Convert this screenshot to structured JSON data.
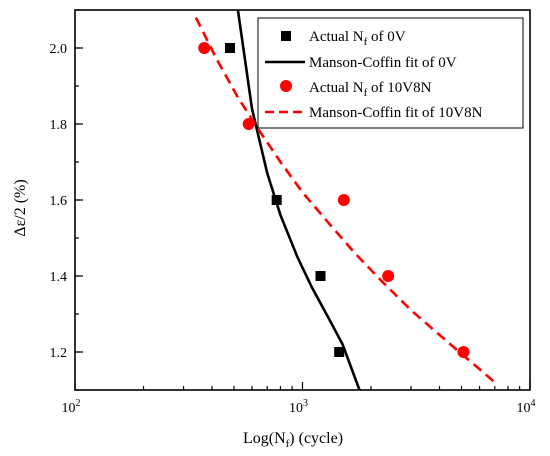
{
  "chart_data": {
    "type": "scatter",
    "title": "",
    "xlabel": "Log(N",
    "xlabel_sub": "f",
    "xlabel_suffix": ") (cycle)",
    "ylabel": "Δε/2 (%)",
    "xscale": "log",
    "xlim": [
      100,
      10000
    ],
    "ylim": [
      1.1,
      2.1
    ],
    "x_ticks": [
      {
        "value": 100,
        "base": "10",
        "exp": "2"
      },
      {
        "value": 1000,
        "base": "10",
        "exp": "3"
      },
      {
        "value": 10000,
        "base": "10",
        "exp": "4"
      }
    ],
    "y_ticks": [
      "1.2",
      "1.4",
      "1.6",
      "1.8",
      "2.0"
    ],
    "grid": false,
    "legend_position": "top-right",
    "series": [
      {
        "name": "Actual N",
        "name_sub": "f",
        "name_suffix": " of 0V",
        "kind": "points",
        "marker": "square",
        "color": "#000000",
        "x": [
          480,
          770,
          1200,
          1450
        ],
        "y": [
          2.0,
          1.6,
          1.4,
          1.2
        ]
      },
      {
        "name": "Manson-Coffin fit of 0V",
        "kind": "line",
        "style": "solid",
        "color": "#000000",
        "x": [
          520,
          600,
          700,
          800,
          950,
          1100,
          1300,
          1500,
          1780
        ],
        "y": [
          2.1,
          1.84,
          1.67,
          1.56,
          1.45,
          1.37,
          1.29,
          1.22,
          1.1
        ]
      },
      {
        "name": "Actual N",
        "name_sub": "f",
        "name_suffix": " of 10V8N",
        "kind": "points",
        "marker": "circle",
        "color": "#ff0000",
        "x": [
          370,
          580,
          1520,
          2380,
          5100
        ],
        "y": [
          2.0,
          1.8,
          1.6,
          1.4,
          1.2
        ]
      },
      {
        "name": "Manson-Coffin fit of 10V8N",
        "kind": "line",
        "style": "dashed",
        "color": "#ff0000",
        "x": [
          340,
          420,
          520,
          650,
          800,
          1000,
          1300,
          1700,
          2200,
          3000,
          4000,
          5000,
          6000,
          7000
        ],
        "y": [
          2.08,
          1.97,
          1.87,
          1.78,
          1.7,
          1.62,
          1.54,
          1.46,
          1.39,
          1.31,
          1.245,
          1.195,
          1.155,
          1.12
        ]
      }
    ]
  }
}
